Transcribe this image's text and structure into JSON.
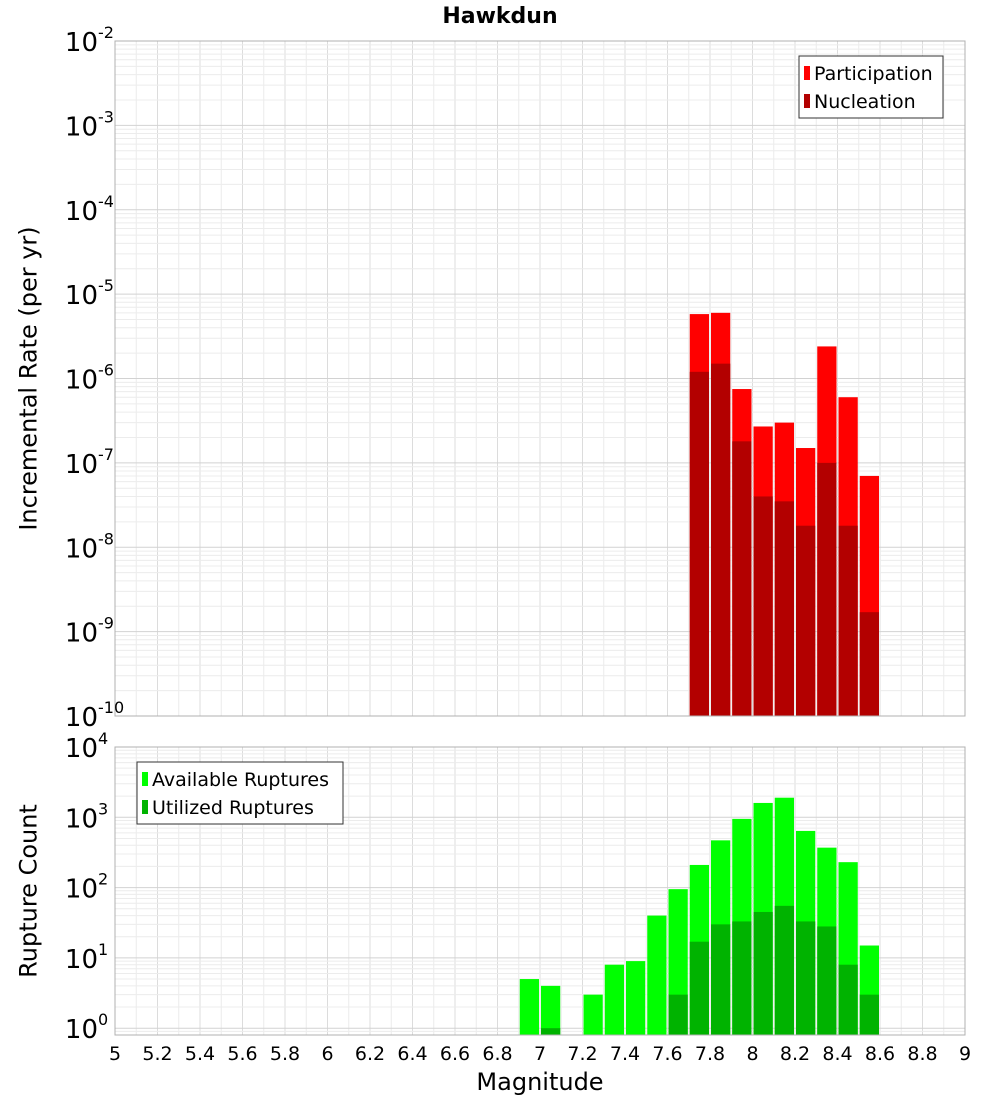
{
  "chart_data": [
    {
      "type": "bar",
      "title": "Hawkdun",
      "xlabel": "",
      "ylabel": "Incremental Rate (per yr)",
      "yscale": "log",
      "ylim": [
        1e-10,
        0.01
      ],
      "xlim": [
        5,
        9
      ],
      "grid": true,
      "legend_position": "top-right",
      "yticks": [
        {
          "base": "10",
          "exp": "-10",
          "value": 1e-10
        },
        {
          "base": "10",
          "exp": "-9",
          "value": 1e-09
        },
        {
          "base": "10",
          "exp": "-8",
          "value": 1e-08
        },
        {
          "base": "10",
          "exp": "-7",
          "value": 1e-07
        },
        {
          "base": "10",
          "exp": "-6",
          "value": 1e-06
        },
        {
          "base": "10",
          "exp": "-5",
          "value": 1e-05
        },
        {
          "base": "10",
          "exp": "-4",
          "value": 0.0001
        },
        {
          "base": "10",
          "exp": "-3",
          "value": 0.001
        },
        {
          "base": "10",
          "exp": "-2",
          "value": 0.01
        }
      ],
      "x": [
        7.75,
        7.85,
        7.95,
        8.05,
        8.15,
        8.25,
        8.35,
        8.45,
        8.55
      ],
      "series": [
        {
          "name": "Participation",
          "color": "#ff0000",
          "values": [
            5.8e-06,
            6e-06,
            7.5e-07,
            2.7e-07,
            3e-07,
            1.5e-07,
            2.4e-06,
            6e-07,
            7e-08
          ]
        },
        {
          "name": "Nucleation",
          "color": "#b30000",
          "values": [
            1.2e-06,
            1.5e-06,
            1.8e-07,
            4e-08,
            3.5e-08,
            1.8e-08,
            1e-07,
            1.8e-08,
            1.7e-09
          ]
        }
      ]
    },
    {
      "type": "bar",
      "title": "",
      "xlabel": "Magnitude",
      "ylabel": "Rupture Count",
      "yscale": "log",
      "ylim": [
        0.8,
        10000
      ],
      "xlim": [
        5,
        9
      ],
      "grid": true,
      "legend_position": "top-left",
      "xticks": [
        "5",
        "5.2",
        "5.4",
        "5.6",
        "5.8",
        "6",
        "6.2",
        "6.4",
        "6.6",
        "6.8",
        "7",
        "7.2",
        "7.4",
        "7.6",
        "7.8",
        "8",
        "8.2",
        "8.4",
        "8.6",
        "8.8",
        "9"
      ],
      "yticks": [
        {
          "base": "10",
          "exp": "0",
          "value": 1
        },
        {
          "base": "10",
          "exp": "1",
          "value": 10
        },
        {
          "base": "10",
          "exp": "2",
          "value": 100
        },
        {
          "base": "10",
          "exp": "3",
          "value": 1000
        },
        {
          "base": "10",
          "exp": "4",
          "value": 10000
        }
      ],
      "x": [
        6.95,
        7.05,
        7.15,
        7.25,
        7.35,
        7.45,
        7.55,
        7.65,
        7.75,
        7.85,
        7.95,
        8.05,
        8.15,
        8.25,
        8.35,
        8.45,
        8.55
      ],
      "series": [
        {
          "name": "Available Ruptures",
          "color": "#00ff00",
          "values": [
            5,
            4,
            0,
            3,
            8,
            9,
            40,
            95,
            210,
            470,
            950,
            1600,
            1900,
            640,
            370,
            230,
            15
          ]
        },
        {
          "name": "Utilized Ruptures",
          "color": "#00b300",
          "values": [
            0,
            1,
            0,
            0,
            0,
            0,
            0,
            3,
            17,
            30,
            33,
            45,
            55,
            33,
            28,
            8,
            3
          ]
        }
      ]
    }
  ]
}
